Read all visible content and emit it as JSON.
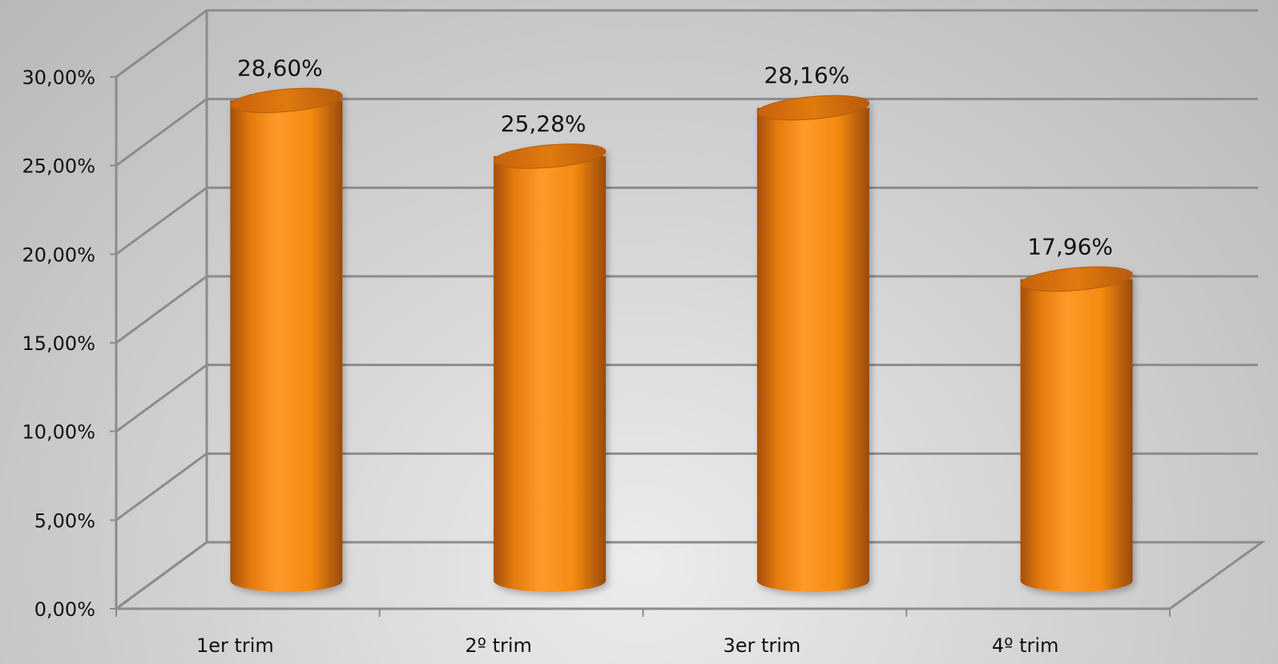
{
  "chart_data": {
    "type": "bar",
    "style": "3d-cylinder",
    "categories": [
      "1er trim",
      "2º trim",
      "3er trim",
      "4º trim"
    ],
    "values": [
      28.6,
      25.28,
      28.16,
      17.96
    ],
    "data_labels": [
      "28,60%",
      "25,28%",
      "28,16%",
      "17,96%"
    ],
    "y_ticks": [
      {
        "value": 0,
        "label": "0,00%"
      },
      {
        "value": 5,
        "label": "5,00%"
      },
      {
        "value": 10,
        "label": "10,00%"
      },
      {
        "value": 15,
        "label": "15,00%"
      },
      {
        "value": 20,
        "label": "20,00%"
      },
      {
        "value": 25,
        "label": "25,00%"
      },
      {
        "value": 30,
        "label": "30,00%"
      }
    ],
    "ylim": [
      0,
      30
    ],
    "title": "",
    "xlabel": "",
    "ylabel": "",
    "grid": true,
    "legend": "none",
    "colors": {
      "bar": "#f38a10",
      "bar_dark": "#a44f06",
      "bar_light": "#ffa033",
      "bar_top": "#d9700a",
      "grid": "#8c8c8c"
    }
  }
}
